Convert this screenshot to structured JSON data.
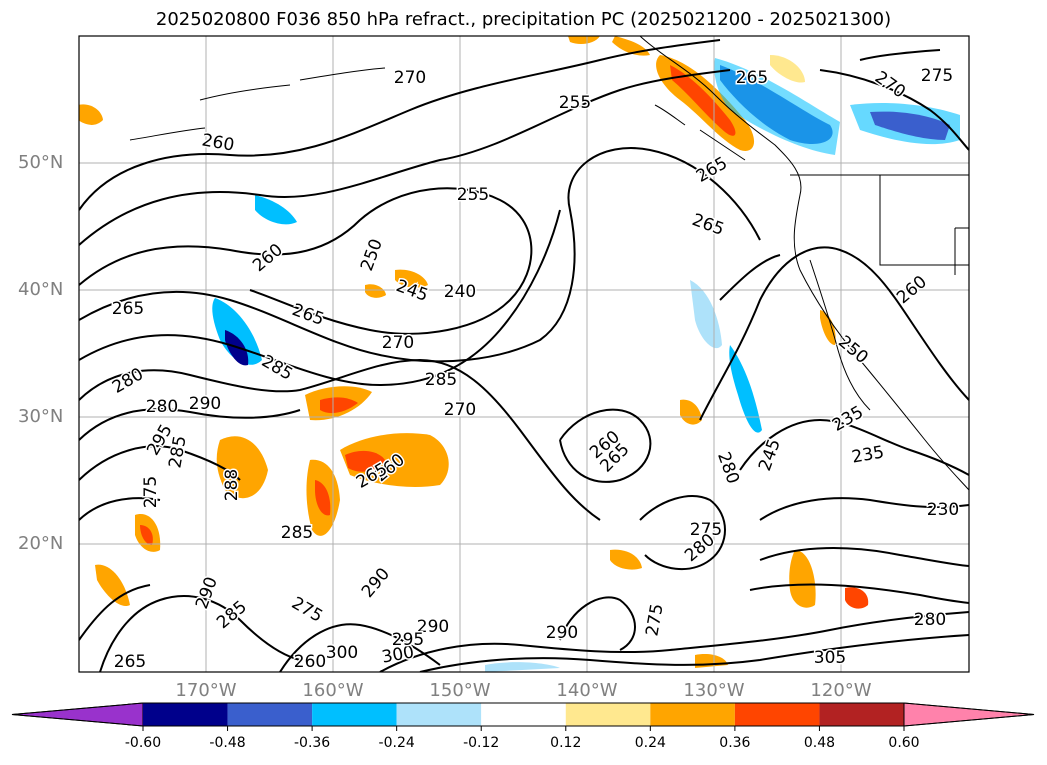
{
  "title": "2025020800 F036 850 hPa refract., precipitation PC (2025021200 - 2025021300)",
  "map": {
    "lat_labels": [
      "50°N",
      "40°N",
      "30°N",
      "20°N"
    ],
    "lon_labels": [
      "170°W",
      "160°W",
      "150°W",
      "140°W",
      "130°W",
      "120°W"
    ],
    "grid_lines": true
  },
  "contour_labels": [
    "270",
    "255",
    "265",
    "270",
    "275",
    "260",
    "255",
    "265",
    "265",
    "250",
    "260",
    "245",
    "240",
    "265",
    "270",
    "265",
    "260",
    "285",
    "280",
    "290",
    "280",
    "285",
    "270",
    "250",
    "235",
    "235",
    "295",
    "275",
    "260",
    "265",
    "280",
    "288",
    "260",
    "265",
    "285",
    "275",
    "280",
    "290",
    "285",
    "290",
    "275",
    "275",
    "290",
    "290",
    "300",
    "295",
    "300",
    "305",
    "280",
    "230",
    "265",
    "260",
    "245",
    "285"
  ],
  "colorbar": {
    "ticks": [
      "-0.60",
      "-0.48",
      "-0.36",
      "-0.24",
      "-0.12",
      "0.12",
      "0.24",
      "0.36",
      "0.48",
      "0.60"
    ],
    "colors": [
      "#9932cc",
      "#00008b",
      "#3a5fcd",
      "#00bfff",
      "#aee2fa",
      "#ffffff",
      "#ffe88f",
      "#ffa500",
      "#ff4500",
      "#b22222",
      "#ff82ab"
    ],
    "extend": "both"
  }
}
